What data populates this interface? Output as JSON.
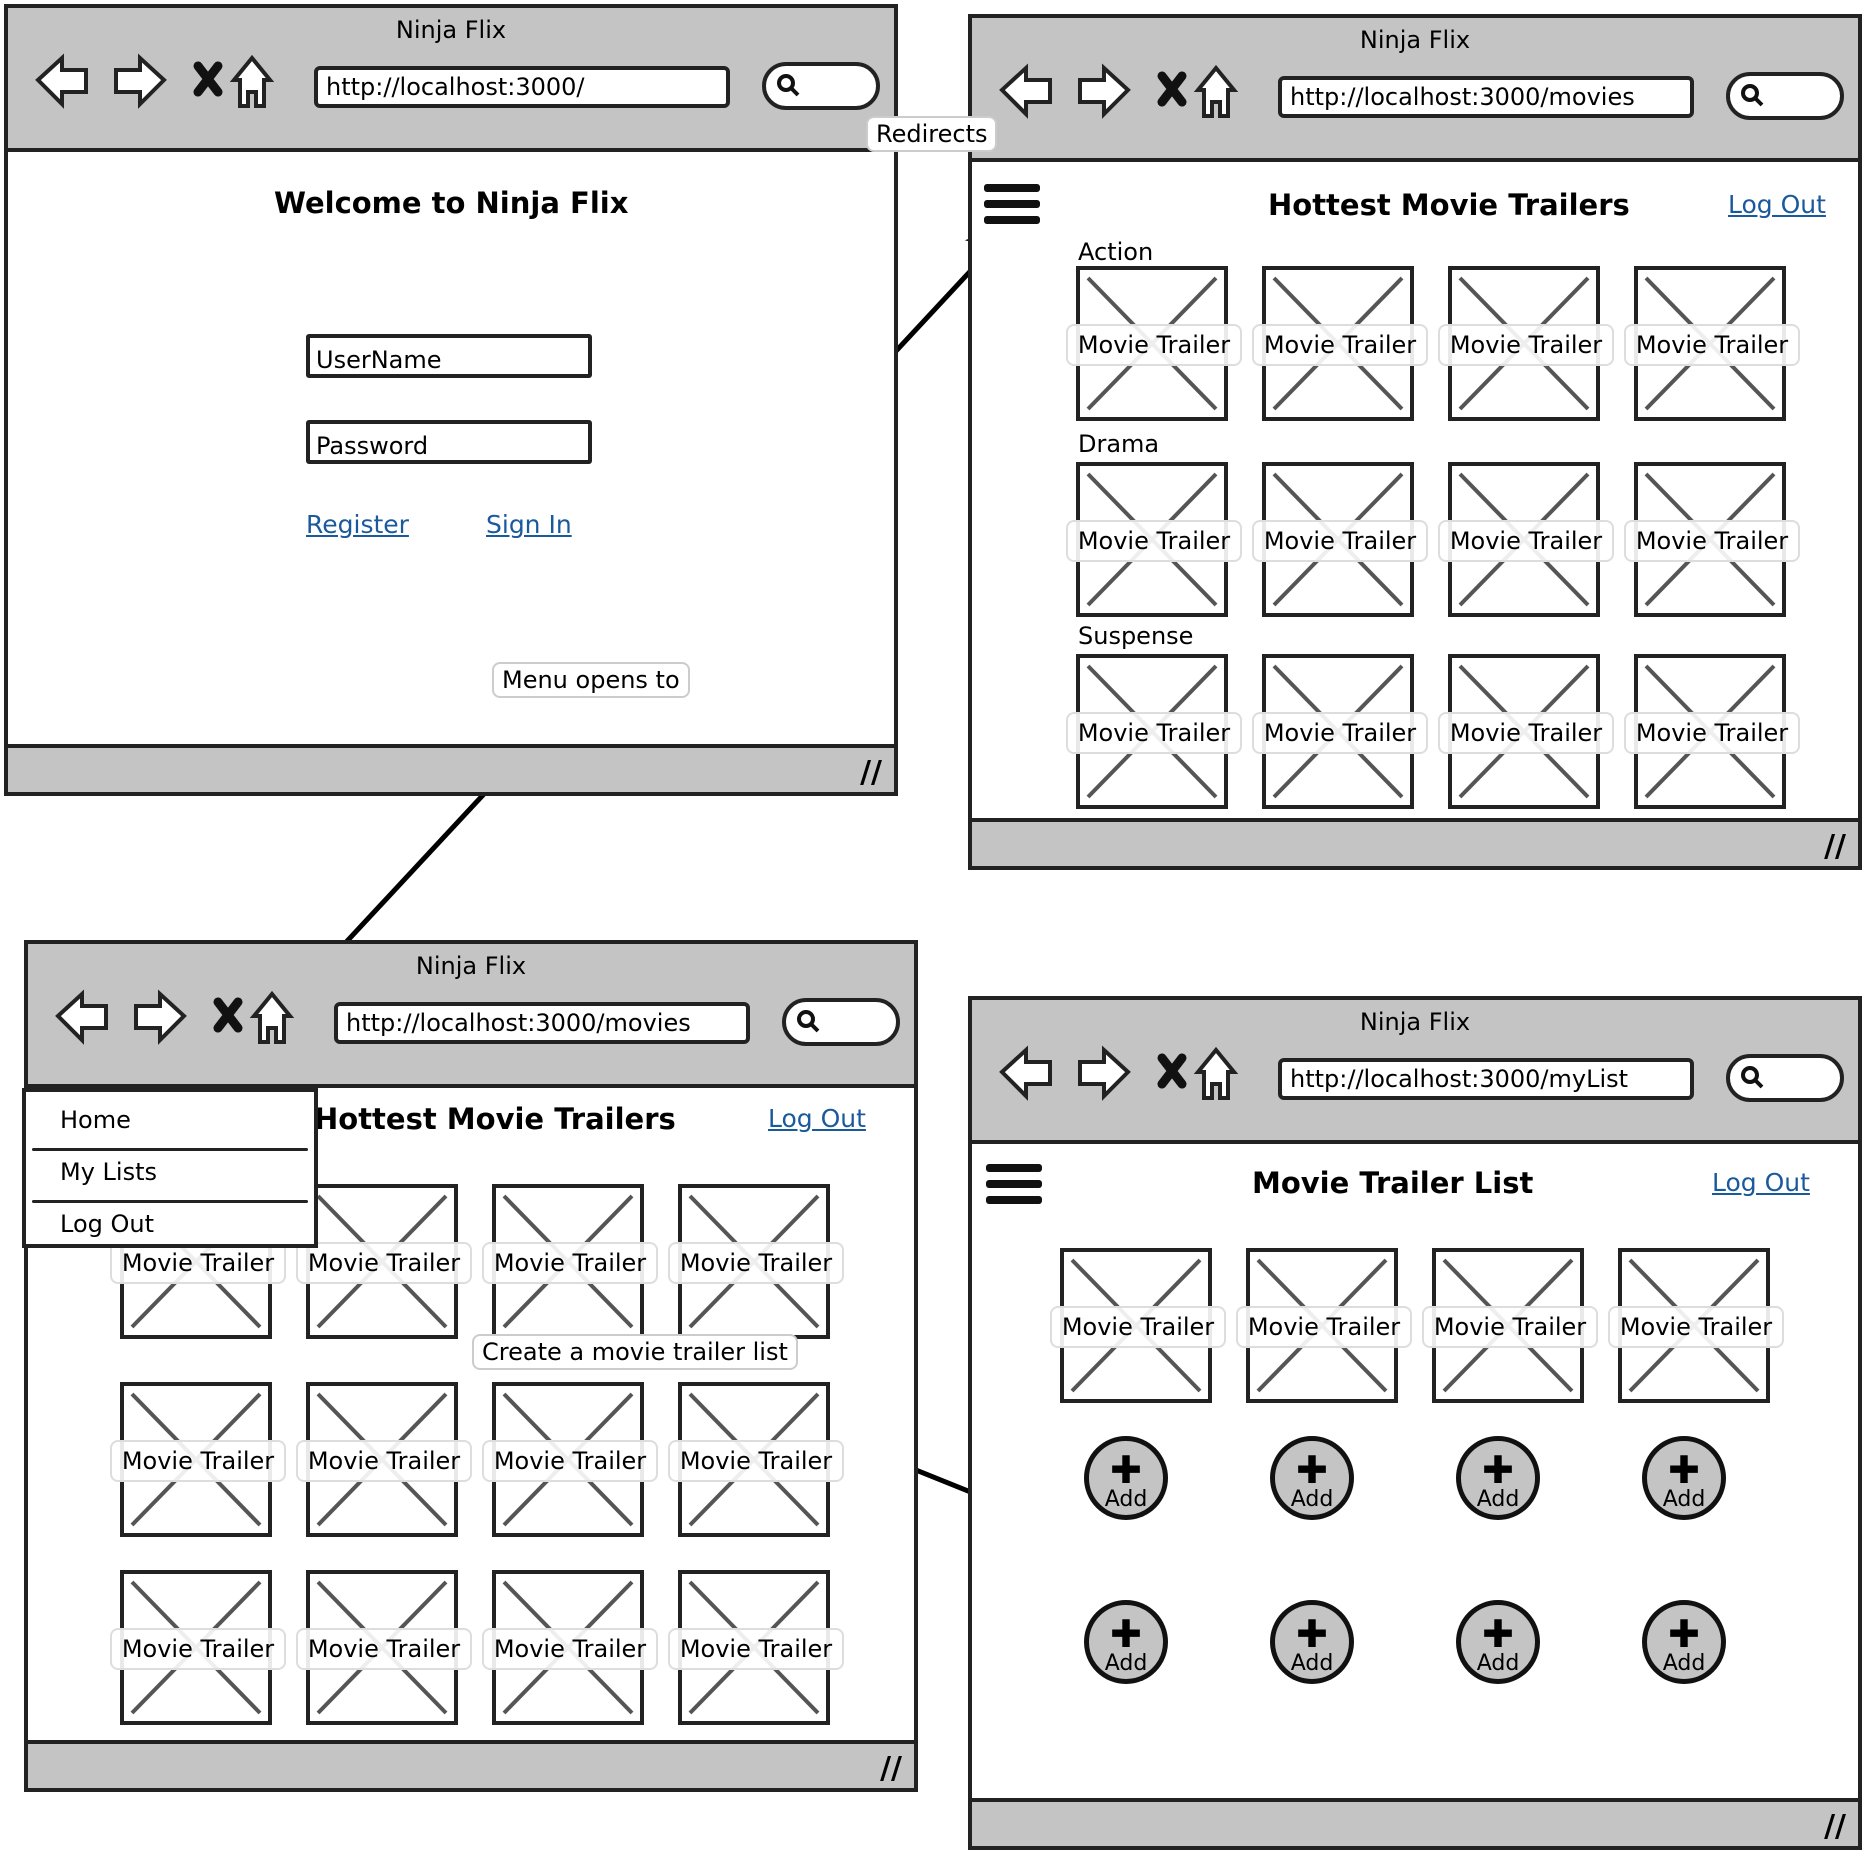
{
  "app_title": "Ninja Flix",
  "windows": {
    "login": {
      "title": "Ninja Flix",
      "url": "http://localhost:3000/",
      "heading": "Welcome to Ninja Flix",
      "username_placeholder": "UserName",
      "password_placeholder": "Password",
      "register_label": "Register",
      "signin_label": "Sign In"
    },
    "movies": {
      "title": "Ninja Flix",
      "url": "http://localhost:3000/movies",
      "heading": "Hottest Movie Trailers",
      "logout_label": "Log Out",
      "categories": [
        "Action",
        "Drama",
        "Suspense"
      ],
      "trailer_label": "Movie Trailer"
    },
    "movies_menu": {
      "title": "Ninja Flix",
      "url": "http://localhost:3000/movies",
      "heading": "Hottest Movie Trailers",
      "logout_label": "Log Out",
      "trailer_label": "Movie Trailer",
      "menu_items": [
        "Home",
        "My Lists",
        "Log Out"
      ]
    },
    "mylist": {
      "title": "Ninja Flix",
      "url": "http://localhost:3000/myList",
      "heading": "Movie Trailer List",
      "logout_label": "Log Out",
      "trailer_label": "Movie Trailer",
      "add_label": "Add"
    }
  },
  "annotations": {
    "redirects": "Redirects",
    "menu_opens_to": "Menu opens to",
    "create_list": "Create a movie trailer list"
  }
}
